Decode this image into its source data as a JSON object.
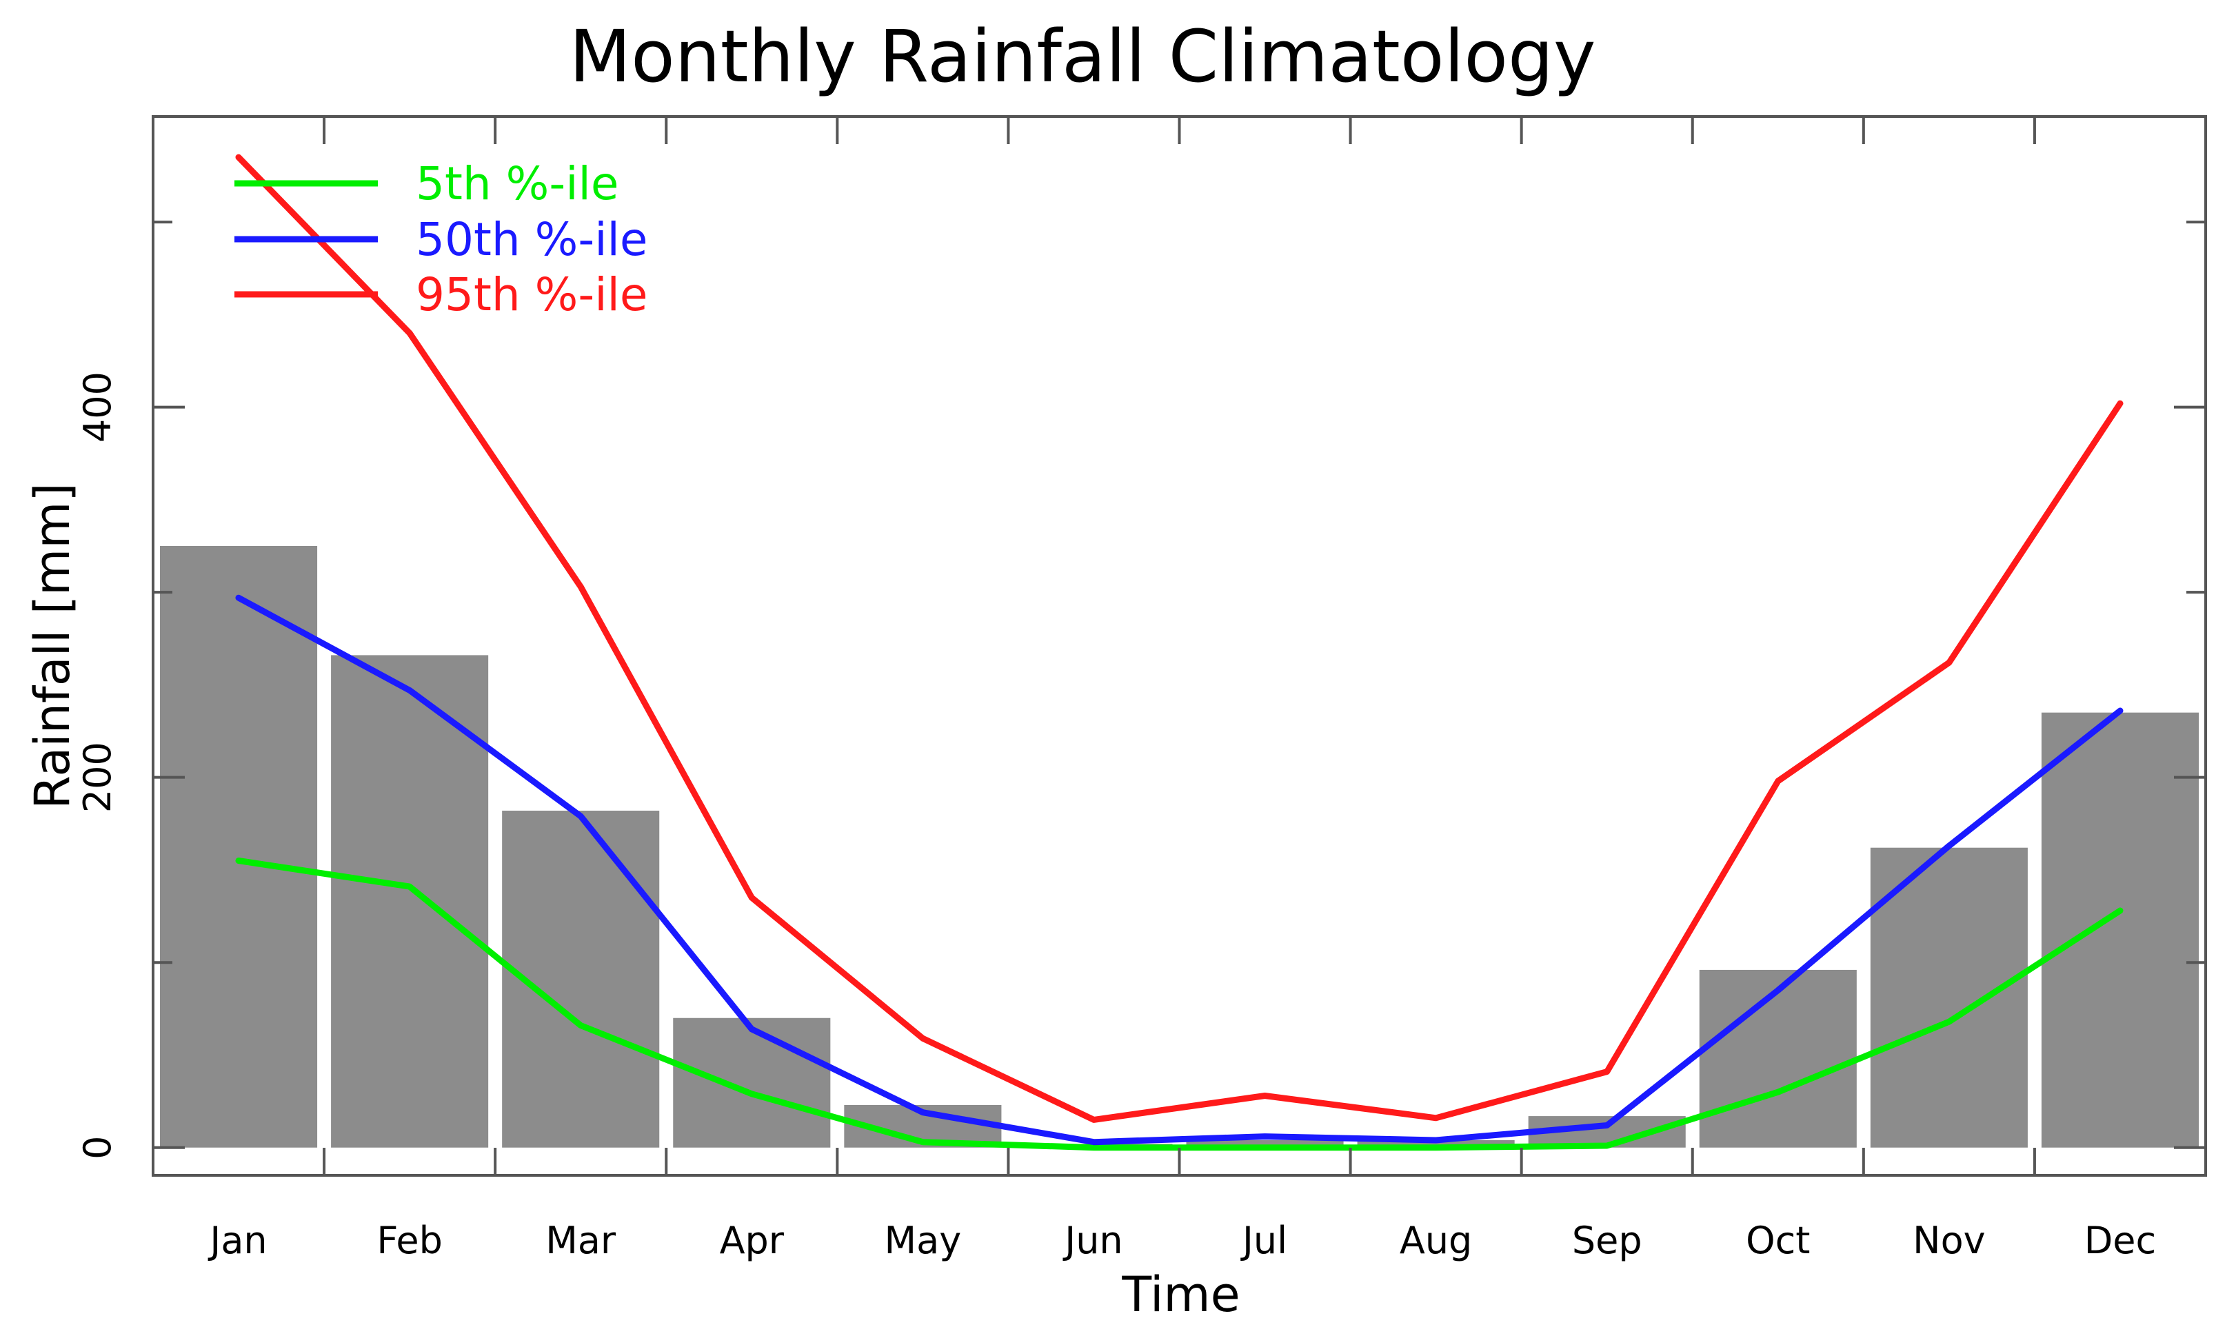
{
  "chart_data": {
    "type": "bar",
    "title": "Monthly Rainfall Climatology",
    "xlabel": "Time",
    "ylabel": "Rainfall [mm]",
    "categories": [
      "Jan",
      "Feb",
      "Mar",
      "Apr",
      "May",
      "Jun",
      "Jul",
      "Aug",
      "Sep",
      "Oct",
      "Nov",
      "Dec"
    ],
    "bars": {
      "values": [
        325,
        266,
        182,
        70,
        23,
        2,
        4,
        4,
        17,
        96,
        162,
        235
      ],
      "color": "#8c8c8c"
    },
    "series": [
      {
        "name": "5th %-ile",
        "type": "line",
        "color": "#00ee00",
        "values": [
          155,
          141,
          66,
          29,
          3,
          0,
          0,
          0,
          1,
          30,
          68,
          128
        ]
      },
      {
        "name": "50th %-ile",
        "type": "line",
        "color": "#1a1aff",
        "values": [
          297,
          247,
          179,
          64,
          19,
          3,
          6,
          4,
          12,
          85,
          163,
          236
        ]
      },
      {
        "name": "95th %-ile",
        "type": "line",
        "color": "#ff1a1a",
        "values": [
          535,
          440,
          303,
          135,
          59,
          15,
          28,
          16,
          41,
          198,
          262,
          402
        ]
      }
    ],
    "yticks": [
      0,
      200,
      400
    ],
    "ylim": [
      -15,
      557
    ],
    "grid": false,
    "legend_position": "top-left"
  }
}
